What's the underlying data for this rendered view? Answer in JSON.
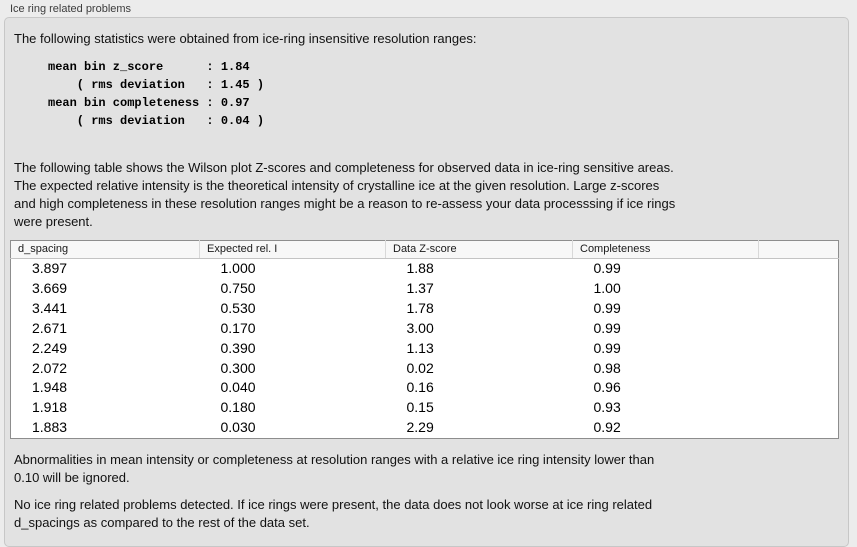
{
  "panel": {
    "title": "Ice ring related problems"
  },
  "stats": {
    "intro": "The following statistics were obtained from ice-ring insensitive resolution ranges:",
    "block": "mean bin z_score      : 1.84\n    ( rms deviation   : 1.45 )\nmean bin completeness : 0.97\n    ( rms deviation   : 0.04 )",
    "mean_bin_z_score": "1.84",
    "z_score_rms_deviation": "1.45",
    "mean_bin_completeness": "0.97",
    "completeness_rms_deviation": "0.04"
  },
  "table_intro": "The following table shows the Wilson plot Z-scores and completeness for observed data in ice-ring sensitive areas.\nThe expected relative intensity is the theoretical intensity of crystalline ice at the given resolution. Large z-scores\nand high completeness in these resolution ranges might be a reason to re-assess your data processsing if ice rings\nwere present.",
  "table": {
    "columns": [
      "d_spacing",
      "Expected rel. I",
      "Data Z-score",
      "Completeness"
    ],
    "rows": [
      [
        "3.897",
        "1.000",
        "1.88",
        "0.99"
      ],
      [
        "3.669",
        "0.750",
        "1.37",
        "1.00"
      ],
      [
        "3.441",
        "0.530",
        "1.78",
        "0.99"
      ],
      [
        "2.671",
        "0.170",
        "3.00",
        "0.99"
      ],
      [
        "2.249",
        "0.390",
        "1.13",
        "0.99"
      ],
      [
        "2.072",
        "0.300",
        "0.02",
        "0.98"
      ],
      [
        "1.948",
        "0.040",
        "0.16",
        "0.96"
      ],
      [
        "1.918",
        "0.180",
        "0.15",
        "0.93"
      ],
      [
        "1.883",
        "0.030",
        "2.29",
        "0.92"
      ]
    ]
  },
  "notes": {
    "ignore_note": "Abnormalities in mean intensity or completeness at resolution ranges with a relative ice ring intensity lower than\n0.10 will be ignored.",
    "conclusion": "No ice ring related problems detected. If ice rings were present, the data does not look worse at ice ring related\nd_spacings as compared to the rest of the data set."
  }
}
